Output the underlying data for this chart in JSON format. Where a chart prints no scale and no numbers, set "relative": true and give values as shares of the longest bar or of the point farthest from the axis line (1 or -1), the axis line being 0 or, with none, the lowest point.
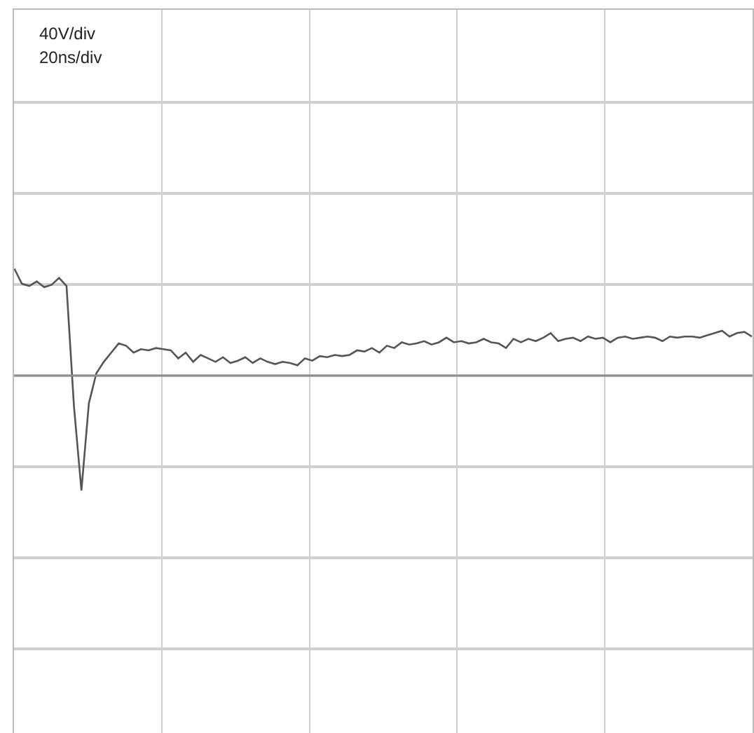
{
  "chart_data": {
    "type": "line",
    "relative": true,
    "grid": true,
    "marker": "none",
    "line_style": "solid",
    "annotations": [
      "40V/div",
      "20ns/div"
    ],
    "categories": [
      null,
      null,
      null,
      null,
      null,
      null,
      null,
      null,
      null,
      null,
      null,
      null,
      null,
      null,
      null,
      null,
      null,
      null,
      null,
      null,
      null,
      null,
      null,
      null,
      null,
      null,
      null,
      null,
      null,
      null,
      null,
      null,
      null,
      null,
      null,
      null,
      null,
      null,
      null,
      null,
      null,
      null,
      null,
      null,
      null,
      null,
      null,
      null,
      null,
      null,
      null,
      null,
      null,
      null,
      null,
      null,
      null,
      null,
      null,
      null,
      null,
      null,
      null,
      null,
      null,
      null,
      null,
      null,
      null,
      null,
      null,
      null,
      null,
      null,
      null,
      null,
      null,
      null,
      null,
      null,
      null,
      null,
      null,
      null,
      null,
      null,
      null,
      null,
      null,
      null,
      null,
      null,
      null,
      null,
      null,
      null,
      null,
      null,
      null,
      null
    ],
    "series": [
      {
        "color": "#555555",
        "values": [
          0.93,
          0.8,
          0.78,
          0.82,
          0.77,
          0.79,
          0.85,
          0.78,
          -0.27,
          -1,
          -0.24,
          0.02,
          0.12,
          0.2,
          0.28,
          0.26,
          0.2,
          0.23,
          0.22,
          0.24,
          0.23,
          0.22,
          0.15,
          0.2,
          0.12,
          0.18,
          0.15,
          0.12,
          0.16,
          0.11,
          0.13,
          0.16,
          0.11,
          0.15,
          0.12,
          0.1,
          0.12,
          0.11,
          0.09,
          0.15,
          0.13,
          0.17,
          0.16,
          0.18,
          0.17,
          0.18,
          0.22,
          0.21,
          0.24,
          0.2,
          0.26,
          0.24,
          0.29,
          0.27,
          0.28,
          0.3,
          0.27,
          0.29,
          0.33,
          0.29,
          0.3,
          0.28,
          0.29,
          0.32,
          0.29,
          0.28,
          0.24,
          0.32,
          0.29,
          0.32,
          0.3,
          0.33,
          0.37,
          0.3,
          0.32,
          0.33,
          0.3,
          0.34,
          0.32,
          0.33,
          0.29,
          0.33,
          0.34,
          0.32,
          0.33,
          0.34,
          0.33,
          0.3,
          0.34,
          0.33,
          0.34,
          0.34,
          0.33,
          0.35,
          0.37,
          0.39,
          0.34,
          0.37,
          0.38,
          0.34
        ]
      }
    ]
  }
}
